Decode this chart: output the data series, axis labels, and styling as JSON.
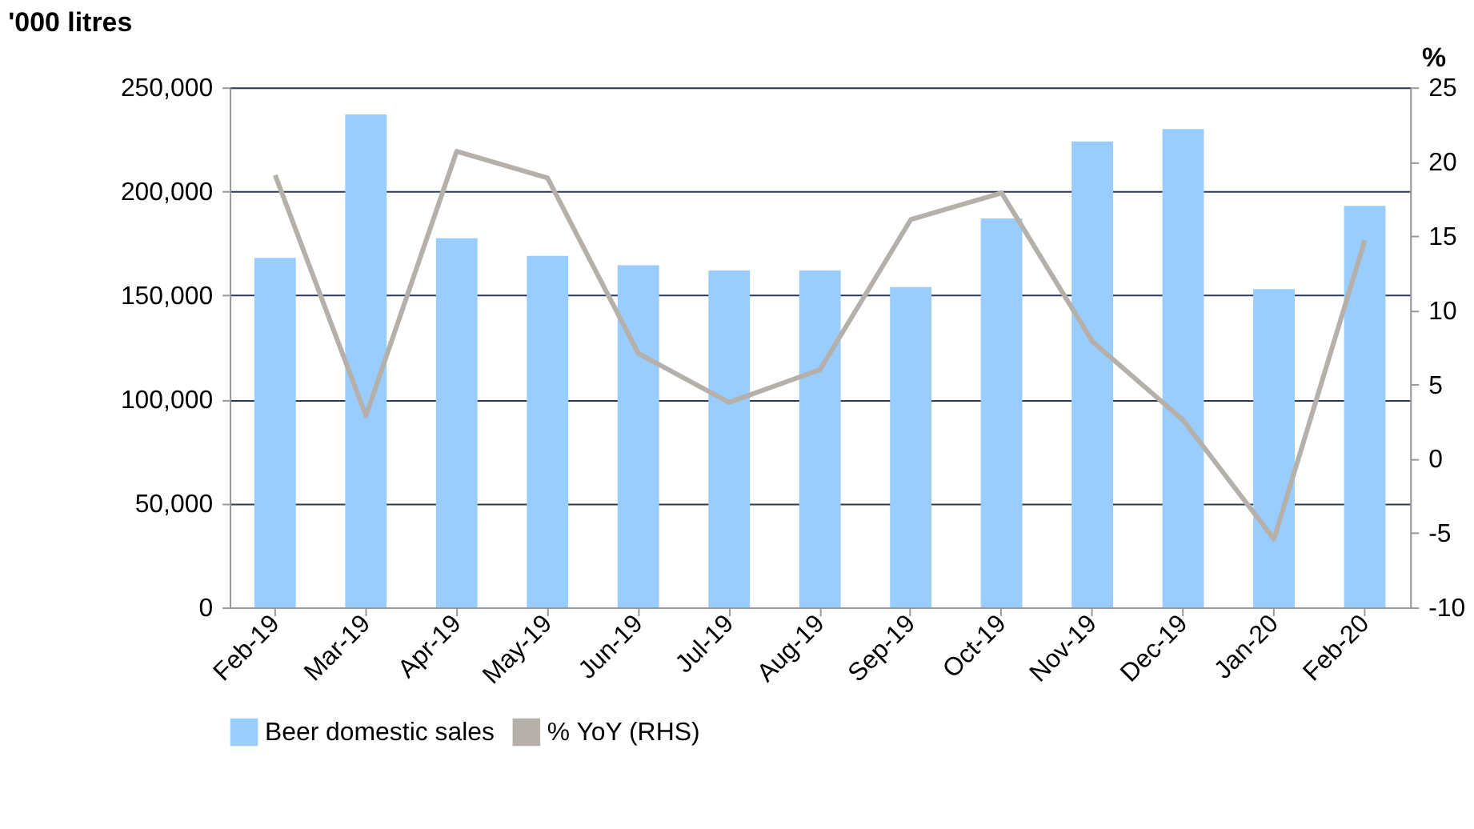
{
  "chart_data": {
    "type": "bar",
    "ylabel": "'000 litres",
    "y2label": "%",
    "categories": [
      "Feb-19",
      "Mar-19",
      "Apr-19",
      "May-19",
      "Jun-19",
      "Jul-19",
      "Aug-19",
      "Sep-19",
      "Oct-19",
      "Nov-19",
      "Dec-19",
      "Jan-20",
      "Feb-20"
    ],
    "series": [
      {
        "name": "Beer domestic sales",
        "color": "#99ccff",
        "values": [
          168000,
          237000,
          177500,
          169000,
          164500,
          162000,
          162000,
          154000,
          187000,
          224000,
          230000,
          153000,
          193000
        ]
      },
      {
        "name": "% YoY (RHS)",
        "type": "line",
        "axis": "y2",
        "color": "#b5b0aa",
        "values": [
          19.1,
          2.9,
          20.7,
          18.9,
          7.1,
          3.8,
          6.0,
          16.1,
          17.9,
          7.9,
          2.6,
          -5.4,
          14.7
        ]
      }
    ],
    "ylim": [
      0,
      250000
    ],
    "yticks": [
      0,
      {
        "value": 50000,
        "label": "50,000"
      },
      {
        "value": 100000,
        "label": "100,000"
      },
      {
        "value": 150000,
        "label": "150,000"
      },
      {
        "value": 200000,
        "label": "200,000"
      },
      {
        "value": 250000,
        "label": "250,000"
      }
    ],
    "y2lim": [
      -10,
      25
    ],
    "y2ticks": [
      -10,
      -5,
      0,
      5,
      10,
      15,
      20,
      25
    ],
    "grid": "y",
    "legend": "bottom",
    "marker": "none",
    "line_style": "solid"
  }
}
